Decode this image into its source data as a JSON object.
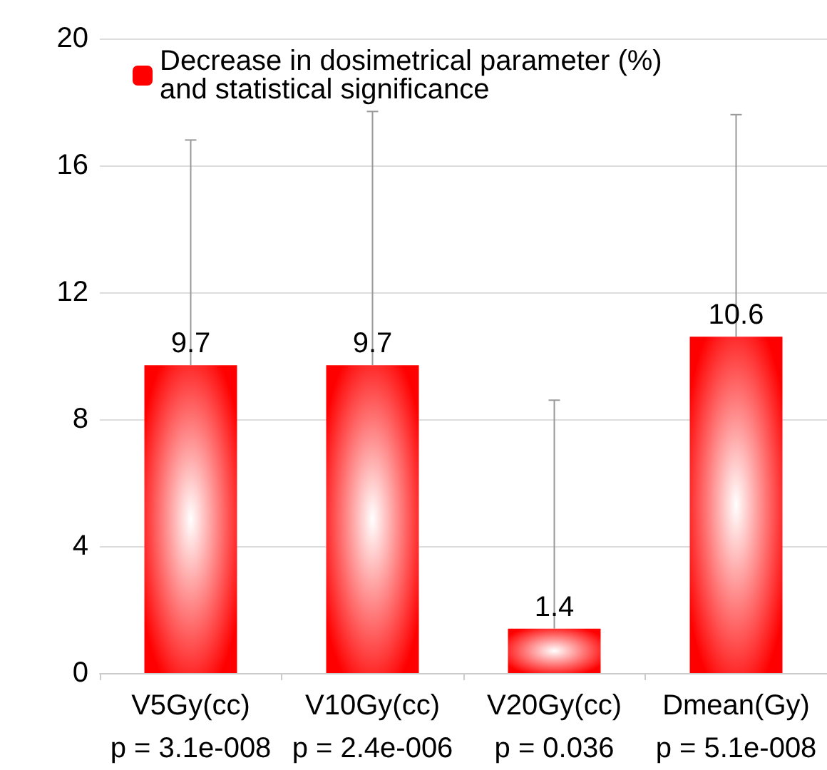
{
  "chart_data": {
    "type": "bar",
    "categories": [
      "V5Gy(cc)\np = 3.1e-008",
      "V10Gy(cc)\np = 2.4e-006",
      "V20Gy(cc)\np = 0.036",
      "Dmean(Gy)\np = 5.1e-008"
    ],
    "series": [
      {
        "name": "Decrease in dosimetrical parameter (%)\nand statistical significance",
        "color": "#ff0000",
        "values": [
          9.7,
          9.7,
          1.4,
          10.6
        ],
        "errors": [
          [
            9.7,
            16.8
          ],
          [
            9.7,
            17.7
          ],
          [
            1.4,
            8.6
          ],
          [
            10.6,
            17.6
          ]
        ]
      }
    ],
    "ylim": [
      0,
      20
    ],
    "yticks": [
      0,
      4,
      8,
      12,
      16,
      20
    ],
    "grid": "y",
    "legend": "top left",
    "data_labels": true
  }
}
